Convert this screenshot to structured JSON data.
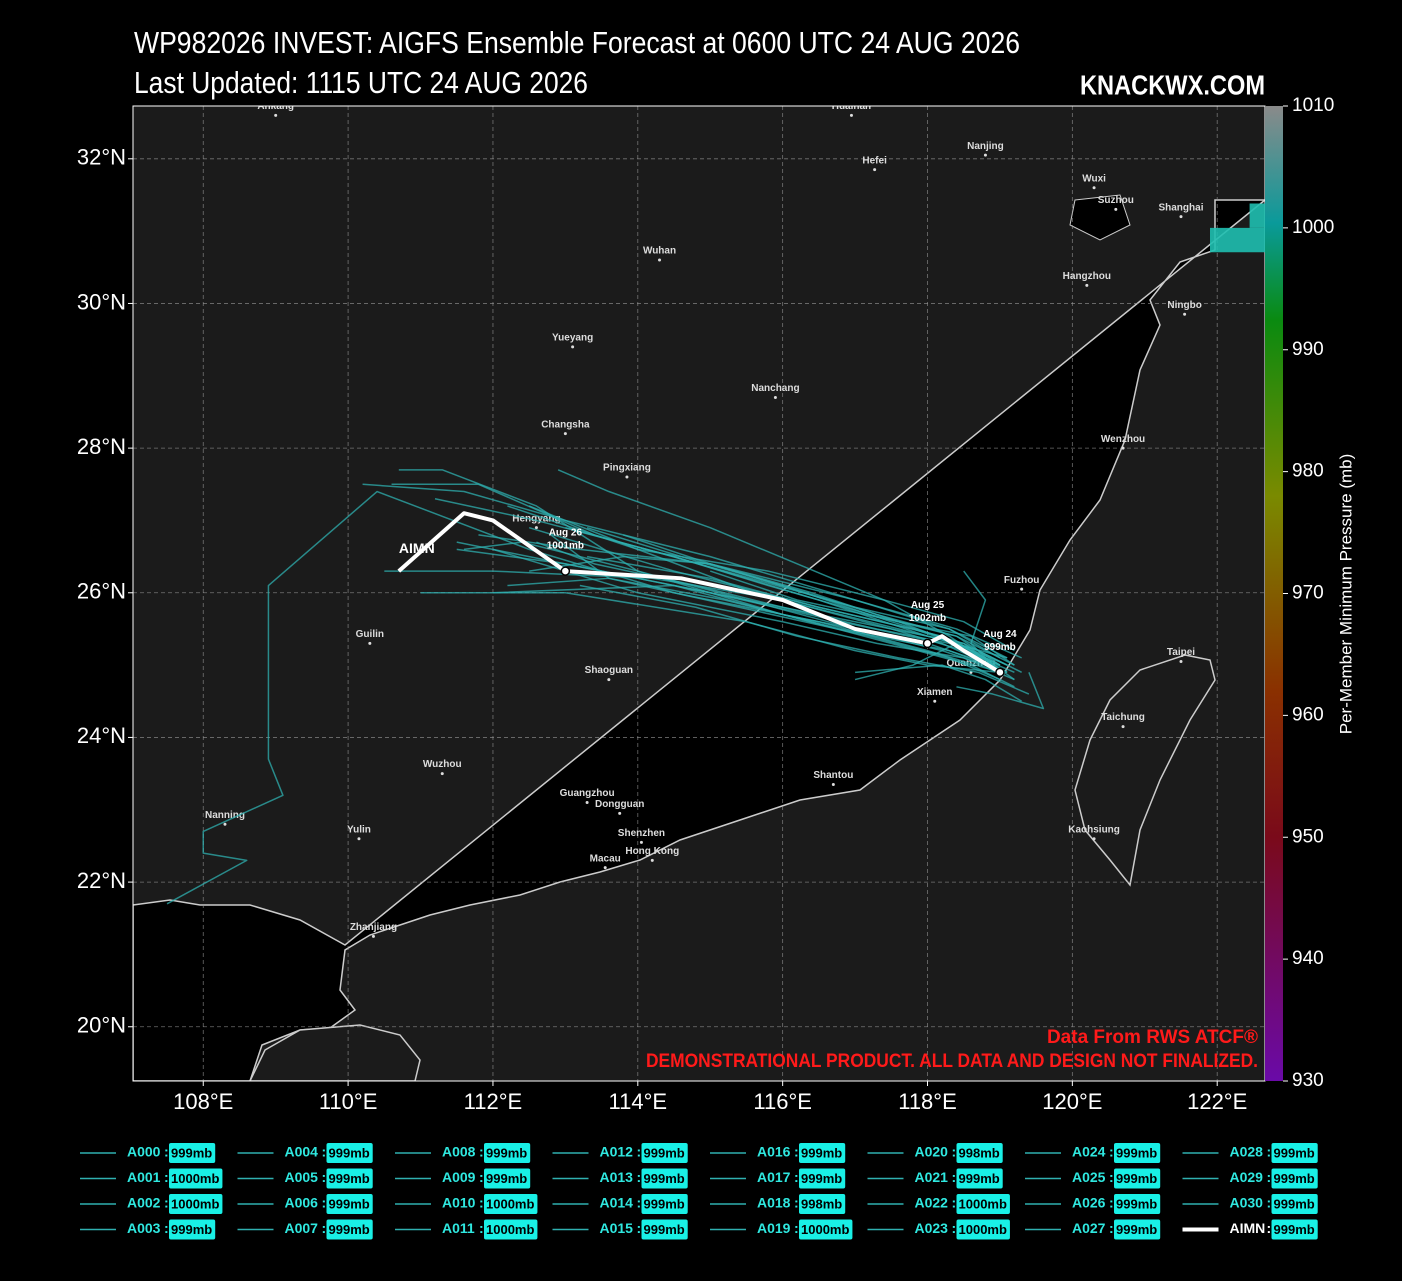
{
  "chart_data": {
    "type": "track-map",
    "title": "WP982026 INVEST: AIGFS Ensemble Forecast at 0600 UTC 24 AUG 2026",
    "subtitle": "Last Updated: 1115 UTC 24 AUG 2026",
    "brand": "KNACKWX.COM",
    "source": "Data From RWS ATCF®",
    "disclaimer": "DEMONSTRATIONAL PRODUCT. ALL DATA AND DESIGN NOT FINALIZED.",
    "xlim": [
      107.03,
      122.66
    ],
    "ylim": [
      19.25,
      32.73
    ],
    "xticks": [
      {
        "value": 108,
        "label": "108°E"
      },
      {
        "value": 110,
        "label": "110°E"
      },
      {
        "value": 112,
        "label": "112°E"
      },
      {
        "value": 114,
        "label": "114°E"
      },
      {
        "value": 116,
        "label": "116°E"
      },
      {
        "value": 118,
        "label": "118°E"
      },
      {
        "value": 120,
        "label": "120°E"
      },
      {
        "value": 122,
        "label": "122°E"
      }
    ],
    "yticks": [
      {
        "value": 20,
        "label": "20°N"
      },
      {
        "value": 22,
        "label": "22°N"
      },
      {
        "value": 24,
        "label": "24°N"
      },
      {
        "value": 26,
        "label": "26°N"
      },
      {
        "value": 28,
        "label": "28°N"
      },
      {
        "value": 30,
        "label": "30°N"
      },
      {
        "value": 32,
        "label": "32°N"
      }
    ],
    "grid": true,
    "colorbar": {
      "label": "Per-Member Minimum Pressure (mb)",
      "lim": [
        930,
        1010
      ],
      "ticks": [
        930,
        940,
        950,
        960,
        970,
        980,
        990,
        1000,
        1010
      ]
    },
    "member_color": "#2fb0b0",
    "mean_color": "#ffffff",
    "cities": [
      {
        "name": "Ankang",
        "lon": 109.0,
        "lat": 32.6
      },
      {
        "name": "Huainan",
        "lon": 116.95,
        "lat": 32.6
      },
      {
        "name": "Hefei",
        "lon": 117.27,
        "lat": 31.85
      },
      {
        "name": "Nanjing",
        "lon": 118.8,
        "lat": 32.05
      },
      {
        "name": "Wuxi",
        "lon": 120.3,
        "lat": 31.6
      },
      {
        "name": "Suzhou",
        "lon": 120.6,
        "lat": 31.3
      },
      {
        "name": "Shanghai",
        "lon": 121.5,
        "lat": 31.2
      },
      {
        "name": "Wuhan",
        "lon": 114.3,
        "lat": 30.6
      },
      {
        "name": "Hangzhou",
        "lon": 120.2,
        "lat": 30.25
      },
      {
        "name": "Ningbo",
        "lon": 121.55,
        "lat": 29.85
      },
      {
        "name": "Yueyang",
        "lon": 113.1,
        "lat": 29.4
      },
      {
        "name": "Nanchang",
        "lon": 115.9,
        "lat": 28.7
      },
      {
        "name": "Changsha",
        "lon": 113.0,
        "lat": 28.2
      },
      {
        "name": "Wenzhou",
        "lon": 120.7,
        "lat": 28.0
      },
      {
        "name": "Pingxiang",
        "lon": 113.85,
        "lat": 27.6
      },
      {
        "name": "Hengyang",
        "lon": 112.6,
        "lat": 26.9
      },
      {
        "name": "Fuzhou",
        "lon": 119.3,
        "lat": 26.05
      },
      {
        "name": "Guilin",
        "lon": 110.3,
        "lat": 25.3
      },
      {
        "name": "Shaoguan",
        "lon": 113.6,
        "lat": 24.8
      },
      {
        "name": "Quanzhou",
        "lon": 118.6,
        "lat": 24.9
      },
      {
        "name": "Taipei",
        "lon": 121.5,
        "lat": 25.05
      },
      {
        "name": "Xiamen",
        "lon": 118.1,
        "lat": 24.5
      },
      {
        "name": "Taichung",
        "lon": 120.7,
        "lat": 24.15
      },
      {
        "name": "Wuzhou",
        "lon": 111.3,
        "lat": 23.5
      },
      {
        "name": "Shantou",
        "lon": 116.7,
        "lat": 23.35
      },
      {
        "name": "Guangzhou",
        "lon": 113.3,
        "lat": 23.1
      },
      {
        "name": "Dongguan",
        "lon": 113.75,
        "lat": 22.95
      },
      {
        "name": "Nanning",
        "lon": 108.3,
        "lat": 22.8
      },
      {
        "name": "Yulin",
        "lon": 110.15,
        "lat": 22.6
      },
      {
        "name": "Kaohsiung",
        "lon": 120.3,
        "lat": 22.6
      },
      {
        "name": "Shenzhen",
        "lon": 114.05,
        "lat": 22.55
      },
      {
        "name": "Hong Kong",
        "lon": 114.2,
        "lat": 22.3
      },
      {
        "name": "Macau",
        "lon": 113.55,
        "lat": 22.2
      },
      {
        "name": "Zhanjiang",
        "lon": 110.35,
        "lat": 21.25
      }
    ],
    "series": [
      {
        "name": "A000",
        "value": 999,
        "value_label": "999mb",
        "lon": [
          119.2,
          118.5,
          117,
          115,
          113,
          111.5
        ],
        "lat": [
          24.8,
          25.3,
          25.6,
          26.0,
          26.4,
          26.6
        ]
      },
      {
        "name": "A001",
        "value": 1000,
        "value_label": "1000mb",
        "lon": [
          119.0,
          118.2,
          116.5,
          114.5,
          112.5
        ],
        "lat": [
          25.0,
          25.4,
          25.8,
          26.3,
          26.9
        ]
      },
      {
        "name": "A002",
        "value": 1000,
        "value_label": "1000mb",
        "lon": [
          119.3,
          118.4,
          117,
          115,
          113.2,
          111.8
        ],
        "lat": [
          25.1,
          25.5,
          25.9,
          26.4,
          26.6,
          26.8
        ]
      },
      {
        "name": "A003",
        "value": 999,
        "value_label": "999mb",
        "lon": [
          119.1,
          118.3,
          116.8,
          115.2,
          113.6,
          112.2
        ],
        "lat": [
          24.9,
          25.2,
          25.5,
          25.9,
          26.2,
          26.1
        ]
      },
      {
        "name": "A004",
        "value": 999,
        "value_label": "999mb",
        "lon": [
          118.9,
          118,
          116,
          114,
          112.6,
          111.3,
          110.7
        ],
        "lat": [
          25.0,
          25.3,
          25.7,
          26.3,
          27.2,
          27.7,
          27.7
        ]
      },
      {
        "name": "A005",
        "value": 999,
        "value_label": "999mb",
        "lon": [
          119.2,
          118.6,
          117.5,
          116,
          114.5,
          112.0
        ],
        "lat": [
          24.7,
          25.0,
          25.3,
          25.7,
          26.1,
          26.0
        ]
      },
      {
        "name": "A006",
        "value": 999,
        "value_label": "999mb",
        "lon": [
          119.0,
          118.0,
          117.0,
          115.5,
          113.0,
          111.0
        ],
        "lat": [
          24.9,
          25.0,
          25.2,
          25.6,
          26.0,
          26.0
        ]
      },
      {
        "name": "A007",
        "value": 999,
        "value_label": "999mb",
        "lon": [
          119.4,
          118.7,
          117.6,
          116.2,
          114.8,
          113.2
        ],
        "lat": [
          24.6,
          24.9,
          25.1,
          25.4,
          25.8,
          26.1
        ]
      },
      {
        "name": "A008",
        "value": 999,
        "value_label": "999mb",
        "lon": [
          119.1,
          118.4,
          117.8,
          117.0
        ],
        "lat": [
          25.0,
          25.3,
          25.0,
          24.8
        ]
      },
      {
        "name": "A009",
        "value": 999,
        "value_label": "999mb",
        "lon": [
          119.2,
          118.5,
          117.4,
          115.8,
          114.0,
          112.5
        ],
        "lat": [
          25.2,
          25.6,
          25.9,
          26.3,
          26.6,
          27.2
        ]
      },
      {
        "name": "A010",
        "value": 1000,
        "value_label": "1000mb",
        "lon": [
          119.0,
          118.3,
          117.2,
          115.4,
          113.6,
          112.8
        ],
        "lat": [
          24.8,
          25.1,
          25.4,
          25.8,
          26.2,
          26.8
        ]
      },
      {
        "name": "A011",
        "value": 1000,
        "value_label": "1000mb",
        "lon": [
          119.1,
          118.0,
          116.5,
          114.5,
          112.6,
          111.2
        ],
        "lat": [
          25.1,
          25.4,
          25.9,
          26.5,
          27.0,
          27.3
        ]
      },
      {
        "name": "A012",
        "value": 999,
        "value_label": "999mb",
        "lon": [
          119.3,
          118.8,
          118.2,
          117.0
        ],
        "lat": [
          24.5,
          24.8,
          25.0,
          24.9
        ]
      },
      {
        "name": "A013",
        "value": 999,
        "value_label": "999mb",
        "lon": [
          119.0,
          118.4,
          117.3,
          116.0,
          114.6,
          113.3
        ],
        "lat": [
          25.0,
          25.4,
          25.7,
          26.1,
          26.5,
          26.9
        ]
      },
      {
        "name": "A014",
        "value": 999,
        "value_label": "999mb",
        "lon": [
          118.8,
          118.2,
          117.0,
          115.5,
          114.0,
          112.4,
          111.6
        ],
        "lat": [
          25.0,
          25.2,
          25.5,
          25.9,
          26.3,
          26.7,
          26.6
        ]
      },
      {
        "name": "A015",
        "value": 999,
        "value_label": "999mb",
        "lon": [
          119.2,
          118.6,
          117.6,
          116.4,
          115.0,
          113.8
        ],
        "lat": [
          25.0,
          25.4,
          25.6,
          26.0,
          26.4,
          26.8
        ]
      },
      {
        "name": "A016",
        "value": 999,
        "value_label": "999mb",
        "lon": [
          119.0,
          118.3,
          117.0,
          115.2,
          113.4,
          111.8,
          110.6
        ],
        "lat": [
          25.1,
          25.5,
          25.8,
          26.3,
          26.8,
          27.5,
          27.5
        ]
      },
      {
        "name": "A017",
        "value": 999,
        "value_label": "999mb",
        "lon": [
          119.4,
          119.6,
          118.9,
          118.4
        ],
        "lat": [
          24.9,
          24.4,
          24.6,
          24.7
        ]
      },
      {
        "name": "A018",
        "value": 998,
        "value_label": "998mb",
        "lon": [
          119.1,
          118.4,
          117.2,
          115.6,
          114.0,
          112.2
        ],
        "lat": [
          24.9,
          25.3,
          25.6,
          26.0,
          26.6,
          27.2
        ]
      },
      {
        "name": "A019",
        "value": 1000,
        "value_label": "1000mb",
        "lon": [
          118.9,
          118.3,
          117.4,
          116.2,
          115.0,
          113.6,
          112.9
        ],
        "lat": [
          25.0,
          25.4,
          25.9,
          26.4,
          26.9,
          27.4,
          27.7
        ]
      },
      {
        "name": "A020",
        "value": 998,
        "value_label": "998mb",
        "lon": [
          119.0,
          118.6,
          118.8,
          118.5
        ],
        "lat": [
          24.9,
          25.3,
          25.9,
          26.3
        ]
      },
      {
        "name": "A021",
        "value": 999,
        "value_label": "999mb",
        "lon": [
          119.2,
          118.5,
          117.5,
          116.0,
          114.2,
          112.0,
          110.5
        ],
        "lat": [
          24.9,
          25.2,
          25.5,
          25.9,
          26.2,
          26.3,
          26.3
        ]
      },
      {
        "name": "A022",
        "value": 1000,
        "value_label": "1000mb",
        "lon": [
          119.1,
          118.3,
          117.0,
          115.0,
          113.0,
          111.6,
          110.2
        ],
        "lat": [
          25.1,
          25.5,
          25.9,
          26.5,
          27.0,
          27.4,
          27.5
        ]
      },
      {
        "name": "A023",
        "value": 1000,
        "value_label": "1000mb",
        "lon": [
          119.0,
          118.0,
          116.5,
          114.5,
          112.5,
          110.4,
          108.9,
          108.9,
          109.1,
          108.0,
          108.0,
          108.6,
          107.5
        ],
        "lat": [
          24.9,
          25.2,
          25.6,
          26.0,
          26.6,
          27.4,
          26.1,
          23.7,
          23.2,
          22.7,
          22.4,
          22.3,
          21.7
        ]
      },
      {
        "name": "A024",
        "value": 999,
        "value_label": "999mb",
        "lon": [
          119.2,
          118.5,
          117.3,
          116.0,
          114.0,
          112.0
        ],
        "lat": [
          24.8,
          25.1,
          25.3,
          25.6,
          26.0,
          26.6
        ]
      },
      {
        "name": "A025",
        "value": 999,
        "value_label": "999mb",
        "lon": [
          119.0,
          118.4,
          117.6,
          116.2,
          115.0
        ],
        "lat": [
          25.0,
          25.3,
          25.6,
          25.9,
          26.3
        ]
      },
      {
        "name": "A026",
        "value": 999,
        "value_label": "999mb",
        "lon": [
          119.3,
          118.7,
          117.8,
          116.5,
          115.0,
          113.3
        ],
        "lat": [
          24.9,
          25.2,
          25.5,
          25.8,
          26.2,
          26.5
        ]
      },
      {
        "name": "A027",
        "value": 999,
        "value_label": "999mb",
        "lon": [
          119.1,
          118.2,
          116.8,
          115.0,
          113.0,
          111.5
        ],
        "lat": [
          24.9,
          25.3,
          25.6,
          26.0,
          26.4,
          26.7
        ]
      },
      {
        "name": "A028",
        "value": 999,
        "value_label": "999mb",
        "lon": [
          119.1,
          118.5,
          117.5,
          116.3,
          115.0,
          113.8,
          112.5
        ],
        "lat": [
          25.0,
          25.3,
          25.6,
          26.0,
          26.4,
          26.5,
          26.3
        ]
      },
      {
        "name": "A029",
        "value": 999,
        "value_label": "999mb",
        "lon": [
          119.2,
          118.4,
          117.2,
          115.8,
          114.5,
          113.0
        ],
        "lat": [
          25.0,
          25.4,
          25.7,
          26.1,
          26.5,
          26.9
        ]
      },
      {
        "name": "A030",
        "value": 999,
        "value_label": "999mb",
        "lon": [
          119.0,
          118.3,
          117.3,
          116.0,
          114.8,
          113.4,
          112.6
        ],
        "lat": [
          25.0,
          25.3,
          25.5,
          25.8,
          26.1,
          26.4,
          26.7
        ]
      },
      {
        "name": "AIMN",
        "value": 999,
        "value_label": "999mb",
        "lon": [
          119.0,
          118.5,
          118.2,
          118.0,
          117.0,
          116.0,
          114.6,
          113.0,
          112.0,
          111.6,
          110.7
        ],
        "lat": [
          24.9,
          25.2,
          25.4,
          25.3,
          25.5,
          25.9,
          26.2,
          26.3,
          27.0,
          27.1,
          26.3
        ],
        "markers": [
          {
            "date": "Aug 24",
            "lon": 119.0,
            "lat": 24.9,
            "pressure": 999,
            "pressure_label": "999mb"
          },
          {
            "date": "Aug 25",
            "lon": 118.0,
            "lat": 25.3,
            "pressure": 1002,
            "pressure_label": "1002mb"
          },
          {
            "date": "Aug 26",
            "lon": 113.0,
            "lat": 26.3,
            "pressure": 1001,
            "pressure_label": "1001mb"
          }
        ]
      }
    ]
  }
}
